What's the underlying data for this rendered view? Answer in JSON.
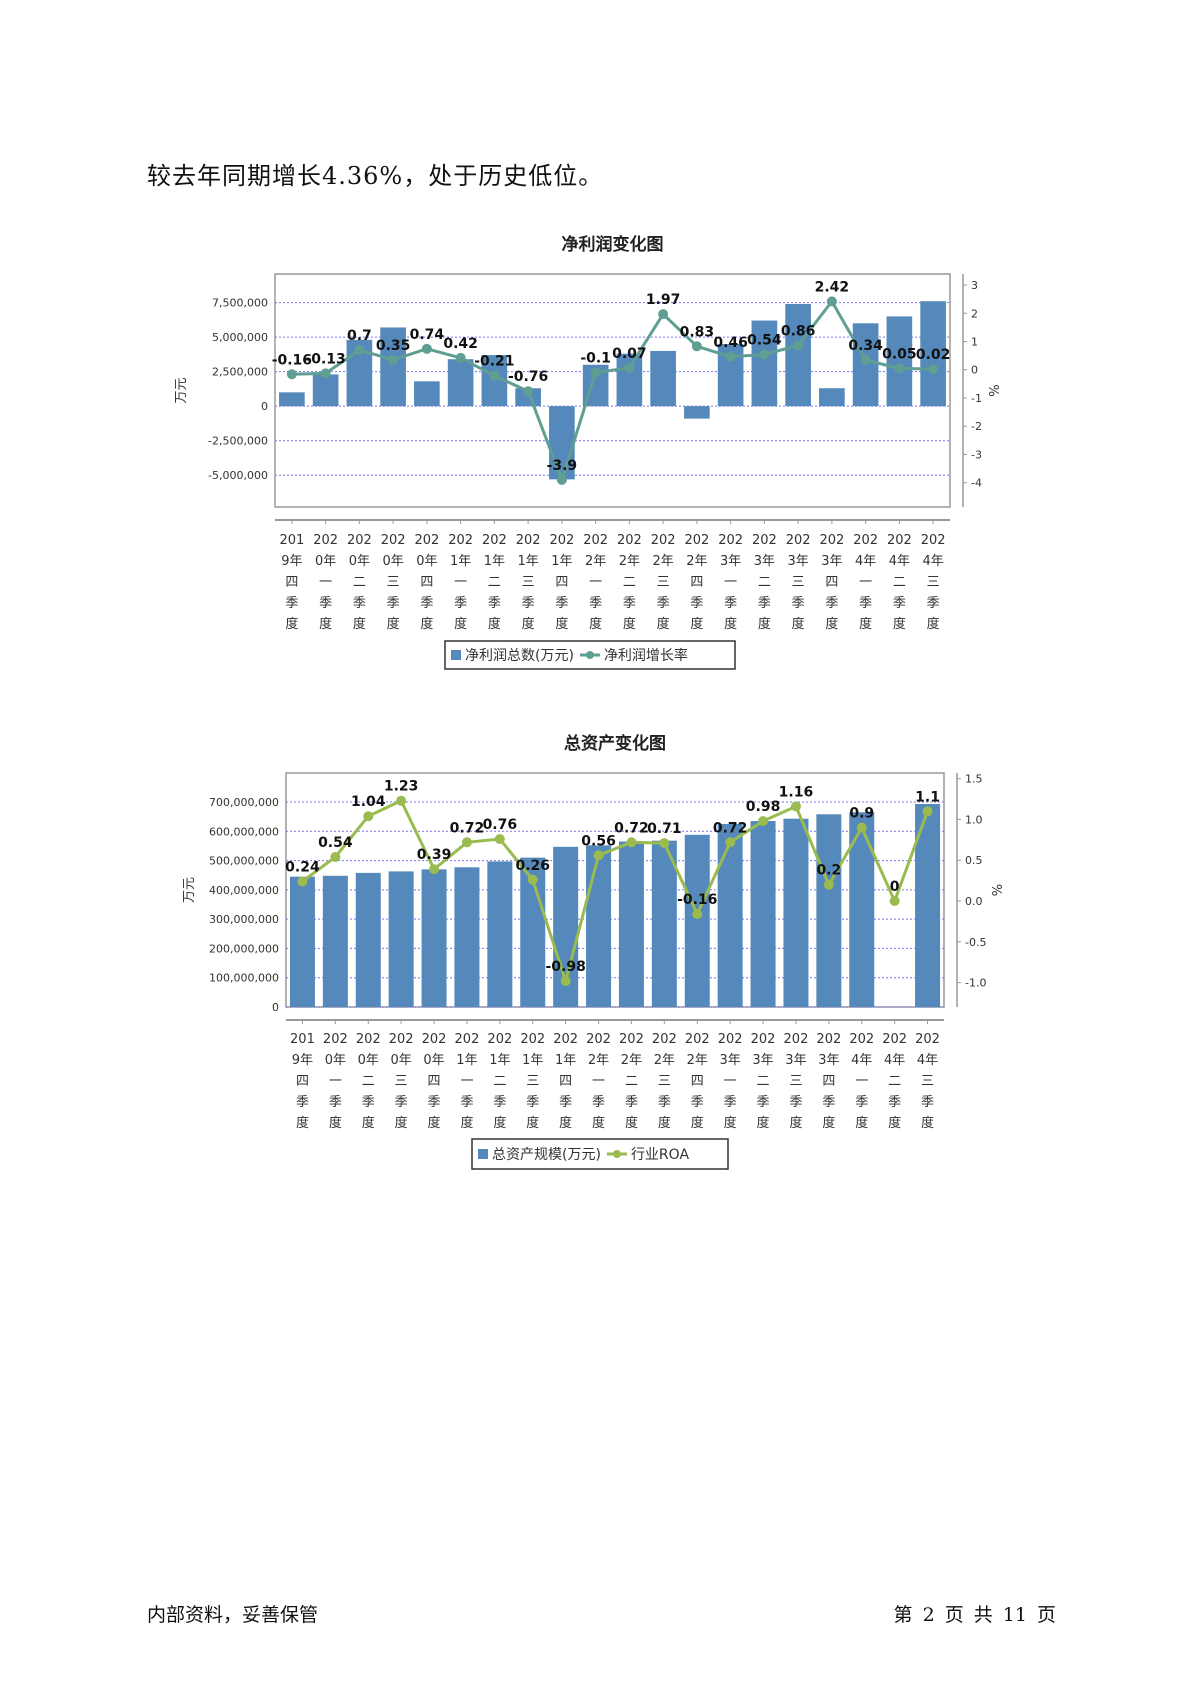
{
  "intro_text": "较去年同期增长4.36%，处于历史低位。",
  "footer": {
    "left": "内部资料，妥善保管",
    "right": "第 2 页  共 11 页"
  },
  "chart_data": [
    {
      "type": "bar+line",
      "title": "净利润变化图",
      "ylabel": "万元",
      "y2label": "%",
      "categories": [
        "2019年四季度",
        "2020年一季度",
        "2020年二季度",
        "2020年三季度",
        "2020年四季度",
        "2021年一季度",
        "2021年二季度",
        "2021年三季度",
        "2021年四季度",
        "2022年一季度",
        "2022年二季度",
        "2022年三季度",
        "2022年四季度",
        "2023年一季度",
        "2023年二季度",
        "2023年三季度",
        "2023年四季度",
        "2024年一季度",
        "2024年二季度",
        "2024年三季度"
      ],
      "series": [
        {
          "name": "净利润总数(万元)",
          "kind": "bar",
          "axis": "left",
          "color": "#5588bb",
          "values": [
            1000000,
            2300000,
            4800000,
            5700000,
            1800000,
            3400000,
            3700000,
            1300000,
            -5300000,
            3000000,
            3800000,
            4000000,
            -900000,
            4500000,
            6200000,
            7400000,
            1300000,
            6000000,
            6500000,
            7600000
          ]
        },
        {
          "name": "净利润增长率",
          "kind": "line",
          "axis": "right",
          "color": "#5f9e93",
          "values": [
            -0.16,
            -0.13,
            0.7,
            0.35,
            0.74,
            0.42,
            -0.21,
            -0.76,
            -3.9,
            -0.1,
            0.07,
            1.97,
            0.83,
            0.46,
            0.54,
            0.86,
            2.42,
            0.34,
            0.05,
            0.02
          ]
        }
      ],
      "ylim": [
        -7300000,
        9570000
      ],
      "yticks": [
        -5000000,
        -2500000,
        0,
        2500000,
        5000000,
        7500000
      ],
      "ytick_labels": [
        "-5,000,000",
        "-2,500,000",
        "0",
        "2,500,000",
        "5,000,000",
        "7,500,000"
      ],
      "y2lim": [
        -4.86,
        3.39
      ],
      "y2ticks": [
        -4,
        -3,
        -2,
        -1,
        0,
        1,
        2,
        3
      ],
      "y2tick_labels": [
        "-4",
        "-3",
        "-2",
        "-1",
        "0",
        "1",
        "2",
        "3"
      ],
      "grid": true,
      "legend": "bottom"
    },
    {
      "type": "bar+line",
      "title": "总资产变化图",
      "ylabel": "万元",
      "y2label": "%",
      "categories": [
        "2019年四季度",
        "2020年一季度",
        "2020年二季度",
        "2020年三季度",
        "2020年四季度",
        "2021年一季度",
        "2021年二季度",
        "2021年三季度",
        "2021年四季度",
        "2022年一季度",
        "2022年二季度",
        "2022年三季度",
        "2022年四季度",
        "2023年一季度",
        "2023年二季度",
        "2023年三季度",
        "2023年四季度",
        "2024年一季度",
        "2024年二季度",
        "2024年三季度"
      ],
      "series": [
        {
          "name": "总资产规模(万元)",
          "kind": "bar",
          "axis": "left",
          "color": "#5588bb",
          "values": [
            445000000,
            448000000,
            458000000,
            463000000,
            470000000,
            477000000,
            497000000,
            510000000,
            547000000,
            552000000,
            565000000,
            568000000,
            588000000,
            625000000,
            635000000,
            643000000,
            658000000,
            665000000,
            null,
            693000000
          ]
        },
        {
          "name": "行业ROA",
          "kind": "line",
          "axis": "right",
          "color": "#99bb4f",
          "values": [
            0.24,
            0.54,
            1.04,
            1.23,
            0.39,
            0.72,
            0.76,
            0.26,
            -0.98,
            0.56,
            0.72,
            0.71,
            -0.16,
            0.72,
            0.98,
            1.16,
            0.2,
            0.9,
            0,
            1.1
          ]
        }
      ],
      "ylim": [
        0,
        799000000
      ],
      "yticks": [
        0,
        100000000,
        200000000,
        300000000,
        400000000,
        500000000,
        600000000,
        700000000
      ],
      "ytick_labels": [
        "0",
        "100,000,000",
        "200,000,000",
        "300,000,000",
        "400,000,000",
        "500,000,000",
        "600,000,000",
        "700,000,000"
      ],
      "y2lim": [
        -1.3,
        1.57
      ],
      "y2ticks": [
        -1.0,
        -0.5,
        0.0,
        0.5,
        1.0,
        1.5
      ],
      "y2tick_labels": [
        "-1.0",
        "-0.5",
        "0.0",
        "0.5",
        "1.0",
        "1.5"
      ],
      "grid": true,
      "legend": "bottom"
    }
  ]
}
